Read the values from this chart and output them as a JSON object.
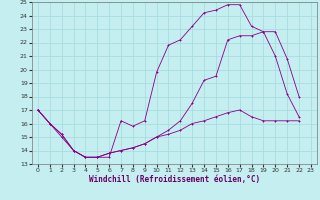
{
  "bg_color": "#c5eef0",
  "grid_color": "#a8dde0",
  "line_color": "#880088",
  "xlabel": "Windchill (Refroidissement éolien,°C)",
  "xlim": [
    -0.5,
    23.5
  ],
  "ylim": [
    13,
    25
  ],
  "xticks": [
    0,
    1,
    2,
    3,
    4,
    5,
    6,
    7,
    8,
    9,
    10,
    11,
    12,
    13,
    14,
    15,
    16,
    17,
    18,
    19,
    20,
    21,
    22,
    23
  ],
  "yticks": [
    13,
    14,
    15,
    16,
    17,
    18,
    19,
    20,
    21,
    22,
    23,
    24,
    25
  ],
  "line1_x": [
    0,
    1,
    2,
    3,
    4,
    5,
    6,
    7,
    8,
    9,
    10,
    11,
    12,
    13,
    14,
    15,
    16,
    17,
    18,
    19,
    20,
    21,
    22
  ],
  "line1_y": [
    17.0,
    16.0,
    15.0,
    14.0,
    13.5,
    13.5,
    13.5,
    16.2,
    15.8,
    16.2,
    19.8,
    21.8,
    22.2,
    23.2,
    24.2,
    24.4,
    24.8,
    24.8,
    23.2,
    22.8,
    21.0,
    18.2,
    16.5
  ],
  "line2_x": [
    0,
    1,
    2,
    3,
    4,
    5,
    6,
    7,
    8,
    9,
    10,
    11,
    12,
    13,
    14,
    15,
    16,
    17,
    18,
    19,
    20,
    21,
    22
  ],
  "line2_y": [
    17.0,
    16.0,
    15.2,
    14.0,
    13.5,
    13.5,
    13.8,
    14.0,
    14.2,
    14.5,
    15.0,
    15.2,
    15.5,
    16.0,
    16.2,
    16.5,
    16.8,
    17.0,
    16.5,
    16.2,
    16.2,
    16.2,
    16.2
  ],
  "line3_x": [
    0,
    1,
    2,
    3,
    4,
    5,
    6,
    7,
    8,
    9,
    10,
    11,
    12,
    13,
    14,
    15,
    16,
    17,
    18,
    19,
    20,
    21,
    22
  ],
  "line3_y": [
    17.0,
    16.0,
    15.2,
    14.0,
    13.5,
    13.5,
    13.8,
    14.0,
    14.2,
    14.5,
    15.0,
    15.5,
    16.2,
    17.5,
    19.2,
    19.5,
    22.2,
    22.5,
    22.5,
    22.8,
    22.8,
    20.8,
    18.0
  ],
  "tick_fontsize": 4.5,
  "xlabel_fontsize": 5.5,
  "lw": 0.6,
  "ms": 2.0
}
